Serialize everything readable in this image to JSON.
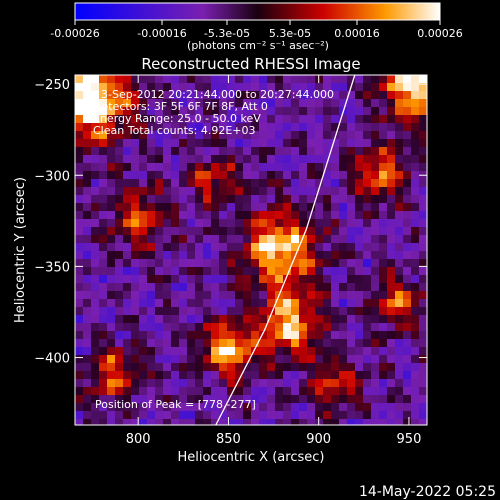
{
  "chart_data": {
    "type": "heatmap",
    "title": "Reconstructed RHESSI Image",
    "xlabel": "Heliocentric X (arcsec)",
    "ylabel": "Heliocentric Y (arcsec)",
    "xlim": [
      765,
      960
    ],
    "ylim": [
      -437,
      -245
    ],
    "x_ticks": [
      800,
      850,
      900,
      950
    ],
    "y_ticks": [
      -250,
      -300,
      -350,
      -400
    ],
    "colorbar": {
      "ticks": [
        "-0.00026",
        "-0.00016",
        "-5.3e-05",
        "5.3e-05",
        "0.00016",
        "0.00026"
      ],
      "label": "(photons cm⁻² s⁻¹ asec⁻²)",
      "range": [
        -0.00026,
        0.00026
      ]
    },
    "annotations": [
      "3-Sep-2012 20:21:44.000 to 20:27:44.000",
      "Detectors: 3F 5F 6F 7F 8F, Att 0",
      "Energy Range: 25.0 - 50.0 keV",
      "Clean    Total counts: 4.92E+03"
    ],
    "peak_label": "Position of Peak = [778,-277]",
    "peak": [
      778,
      -277
    ],
    "limb_curve": [
      [
        843,
        -437
      ],
      [
        870,
        -385
      ],
      [
        893,
        -330
      ],
      [
        912,
        -270
      ],
      [
        920,
        -245
      ]
    ],
    "grid": false,
    "legend": "none"
  },
  "footer_timestamp": "14-May-2022 05:25"
}
